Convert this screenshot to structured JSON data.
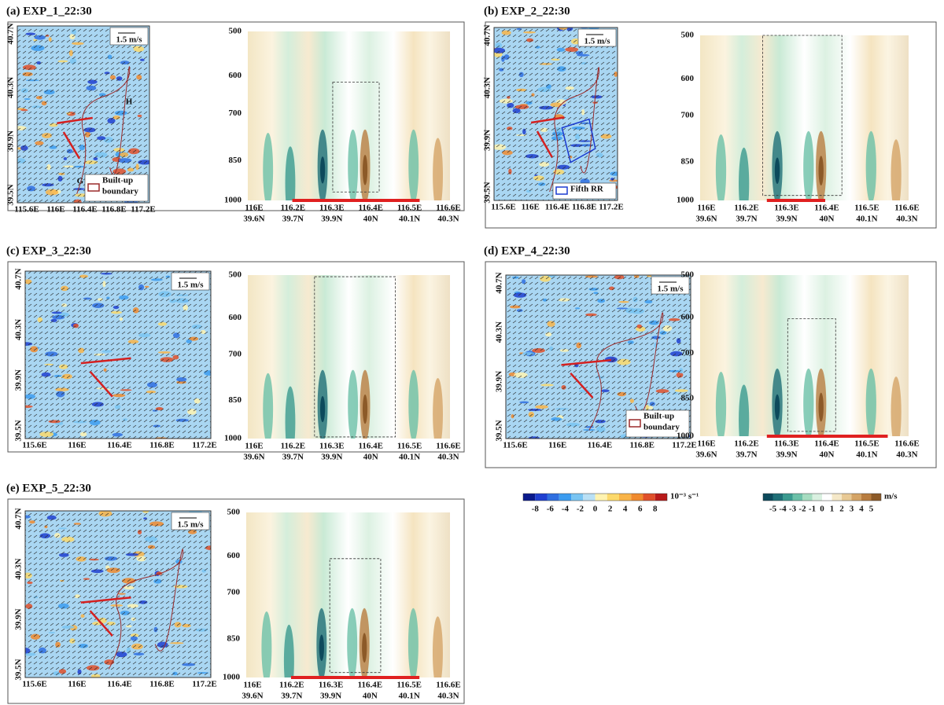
{
  "panels": [
    {
      "title": "(a) EXP_1_22:30",
      "scale_label": "1.5 m/s",
      "legend": [
        "Built-up",
        "boundary"
      ],
      "markers": [
        "H",
        "G"
      ]
    },
    {
      "title": "(b) EXP_2_22:30",
      "scale_label": "1.5 m/s",
      "legend": [
        "Fifth RR"
      ]
    },
    {
      "title": "(c) EXP_3_22:30",
      "scale_label": "1.5 m/s"
    },
    {
      "title": "(d) EXP_4_22:30",
      "scale_label": "1.5 m/s",
      "legend": [
        "Built-up",
        "boundary"
      ]
    },
    {
      "title": "(e) EXP_5_22:30",
      "scale_label": "1.5 m/s"
    }
  ],
  "map_axes": {
    "yticks": [
      "40.7N",
      "40.3N",
      "39.9N",
      "39.5N"
    ],
    "xticks": [
      "115.6E",
      "116E",
      "116.4E",
      "116.8E",
      "117.2E"
    ]
  },
  "section_axes": {
    "yticks": [
      500,
      600,
      700,
      850,
      1000
    ],
    "xticks": [
      {
        "lon": "116E",
        "lat": "39.6N"
      },
      {
        "lon": "116.2E",
        "lat": "39.7N"
      },
      {
        "lon": "116.3E",
        "lat": "39.9N"
      },
      {
        "lon": "116.4E",
        "lat": "40N"
      },
      {
        "lon": "116.5E",
        "lat": "40.1N"
      },
      {
        "lon": "116.6E",
        "lat": "40.3N"
      }
    ]
  },
  "colorbars": [
    {
      "labels": [
        -8,
        -6,
        -4,
        -2,
        0,
        2,
        4,
        6,
        8
      ],
      "unit": "10⁻³ s⁻¹",
      "colors": [
        "#0a1a8c",
        "#1f3fd0",
        "#2f6fe0",
        "#3c9cf0",
        "#79c4f2",
        "#b9e0f5",
        "#fff3b0",
        "#fcd96b",
        "#f9b448",
        "#f08a2e",
        "#e0502a",
        "#b81a1a"
      ]
    },
    {
      "labels": [
        -5,
        -4,
        -3,
        -2,
        -1,
        0,
        1,
        2,
        3,
        4,
        5
      ],
      "unit": "m/s",
      "colors": [
        "#0d4a5c",
        "#1f6f77",
        "#3b9a8f",
        "#6cc0a8",
        "#a6dcc0",
        "#d9f0e0",
        "#ffffff",
        "#f5e8c8",
        "#e8c995",
        "#d4a466",
        "#b87d40",
        "#8c5a28"
      ]
    }
  ]
}
